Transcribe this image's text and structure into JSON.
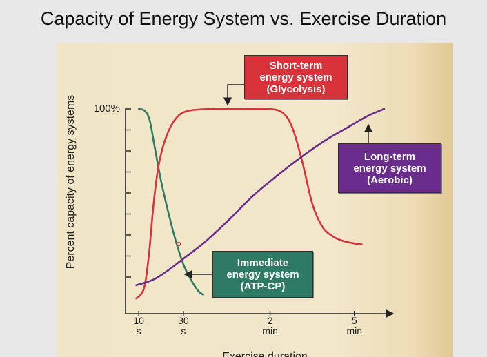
{
  "slide": {
    "title": "Capacity of Energy System vs. Exercise Duration"
  },
  "callouts": {
    "short_term": [
      "Short-term",
      "energy system",
      "(Glycolysis)"
    ],
    "long_term": [
      "Long-term",
      "energy system",
      "(Aerobic)"
    ],
    "immediate": [
      "Immediate",
      "energy system",
      "(ATP-CP)"
    ]
  },
  "colors": {
    "short_term": "#d8323a",
    "long_term": "#6a2d8c",
    "immediate": "#2f7a64",
    "axis": "#222222",
    "background": "#f1e5c7"
  },
  "chart_data": {
    "type": "line",
    "ylabel": "Percent capacity of energy systems",
    "xlabel": "Exercise duration",
    "y_top_label": "100%",
    "ylim": [
      0,
      100
    ],
    "x_ticks": [
      {
        "value": "10",
        "unit": "s",
        "pos": 0.0
      },
      {
        "value": "30",
        "unit": "s",
        "pos": 0.9
      },
      {
        "value": "2",
        "unit": "min",
        "pos": 2.65
      },
      {
        "value": "5",
        "unit": "min",
        "pos": 4.35
      }
    ],
    "xlim": [
      -0.1,
      5.3
    ],
    "series": [
      {
        "name": "Immediate energy system (ATP-CP)",
        "color_key": "immediate",
        "points": [
          [
            0.0,
            100
          ],
          [
            0.12,
            99
          ],
          [
            0.22,
            94
          ],
          [
            0.32,
            80
          ],
          [
            0.45,
            62
          ],
          [
            0.6,
            45
          ],
          [
            0.75,
            30
          ],
          [
            0.9,
            18
          ],
          [
            1.05,
            10
          ],
          [
            1.2,
            4
          ],
          [
            1.3,
            2
          ]
        ]
      },
      {
        "name": "Short-term energy system (Glycolysis)",
        "color_key": "short_term",
        "points": [
          [
            -0.05,
            0
          ],
          [
            0.1,
            5
          ],
          [
            0.2,
            22
          ],
          [
            0.3,
            50
          ],
          [
            0.4,
            70
          ],
          [
            0.55,
            85
          ],
          [
            0.75,
            95
          ],
          [
            1.0,
            99
          ],
          [
            1.5,
            100
          ],
          [
            2.0,
            100
          ],
          [
            2.6,
            100
          ],
          [
            2.9,
            98
          ],
          [
            3.1,
            90
          ],
          [
            3.3,
            72
          ],
          [
            3.5,
            50
          ],
          [
            3.7,
            38
          ],
          [
            3.9,
            33
          ],
          [
            4.1,
            30.5
          ],
          [
            4.35,
            29
          ],
          [
            4.5,
            28.5
          ]
        ]
      },
      {
        "name": "Long-term energy system (Aerobic)",
        "color_key": "long_term",
        "points": [
          [
            -0.05,
            7
          ],
          [
            0.3,
            10
          ],
          [
            0.6,
            15
          ],
          [
            0.9,
            21
          ],
          [
            1.3,
            29
          ],
          [
            1.8,
            41
          ],
          [
            2.3,
            54
          ],
          [
            2.8,
            65
          ],
          [
            3.3,
            75
          ],
          [
            3.8,
            84
          ],
          [
            4.2,
            90
          ],
          [
            4.6,
            96
          ],
          [
            4.95,
            100
          ]
        ]
      }
    ]
  }
}
